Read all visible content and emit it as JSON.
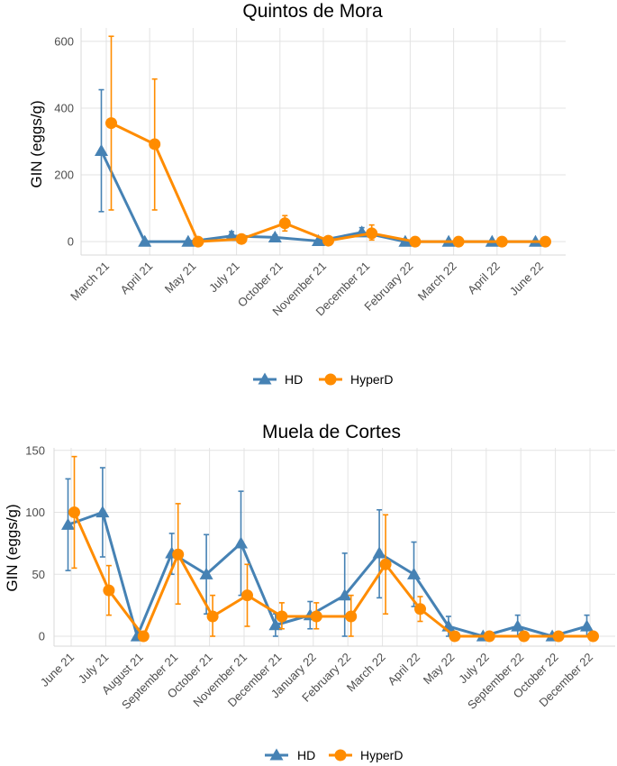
{
  "colors": {
    "HD": "#4682b4",
    "HyperD": "#ff8c00"
  },
  "chart_data": [
    {
      "type": "line",
      "title": "Quintos de Mora",
      "ylabel": "GIN (eggs/g)",
      "xlabel": "",
      "ylim": [
        -40,
        640
      ],
      "yticks": [
        0,
        200,
        400,
        600
      ],
      "grid": true,
      "legend": "bottom",
      "categories": [
        "March 21",
        "April 21",
        "May 21",
        "July 21",
        "October 21",
        "November 21",
        "December 21",
        "February 22",
        "March 22",
        "April 22",
        "June 22"
      ],
      "series": [
        {
          "name": "HD",
          "marker": "triangle",
          "values": [
            272,
            0,
            0,
            17,
            13,
            2,
            28,
            0,
            0,
            0,
            0
          ],
          "err_low": [
            90,
            0,
            0,
            5,
            8,
            0,
            16,
            0,
            0,
            0,
            0
          ],
          "err_high": [
            455,
            0,
            0,
            30,
            20,
            6,
            42,
            0,
            0,
            0,
            0
          ]
        },
        {
          "name": "HyperD",
          "marker": "circle",
          "values": [
            355,
            292,
            0,
            8,
            55,
            3,
            25,
            0,
            0,
            0,
            0
          ],
          "err_low": [
            95,
            95,
            0,
            2,
            32,
            0,
            5,
            0,
            0,
            0,
            0
          ],
          "err_high": [
            615,
            487,
            0,
            15,
            78,
            8,
            50,
            0,
            0,
            0,
            0
          ]
        }
      ]
    },
    {
      "type": "line",
      "title": "Muela de Cortes",
      "ylabel": "GIN (eggs/g)",
      "xlabel": "",
      "ylim": [
        -8,
        152
      ],
      "yticks": [
        0,
        50,
        100,
        150
      ],
      "grid": true,
      "legend": "bottom",
      "categories": [
        "June 21",
        "July 21",
        "August 21",
        "September 21",
        "October 21",
        "November 21",
        "December 21",
        "January 22",
        "February 22",
        "March 22",
        "April 22",
        "May 22",
        "July 22",
        "September 22",
        "October 22",
        "December 22"
      ],
      "series": [
        {
          "name": "HD",
          "marker": "triangle",
          "values": [
            90,
            100,
            0,
            67,
            50,
            75,
            9,
            17,
            33,
            67,
            50,
            8,
            0,
            8,
            0,
            8
          ],
          "err_low": [
            53,
            64,
            0,
            50,
            18,
            33,
            0,
            6,
            0,
            31,
            24,
            0,
            0,
            0,
            0,
            0
          ],
          "err_high": [
            127,
            136,
            0,
            83,
            82,
            117,
            18,
            28,
            67,
            102,
            76,
            16,
            0,
            17,
            0,
            17
          ]
        },
        {
          "name": "HyperD",
          "marker": "circle",
          "values": [
            100,
            37,
            0,
            66,
            16,
            33,
            16,
            16,
            16,
            58,
            22,
            0,
            0,
            0,
            0,
            0
          ],
          "err_low": [
            55,
            17,
            0,
            26,
            0,
            8,
            6,
            6,
            0,
            18,
            12,
            0,
            0,
            0,
            0,
            0
          ],
          "err_high": [
            145,
            57,
            0,
            107,
            33,
            58,
            27,
            27,
            33,
            98,
            32,
            0,
            0,
            0,
            0,
            0
          ]
        }
      ]
    }
  ]
}
